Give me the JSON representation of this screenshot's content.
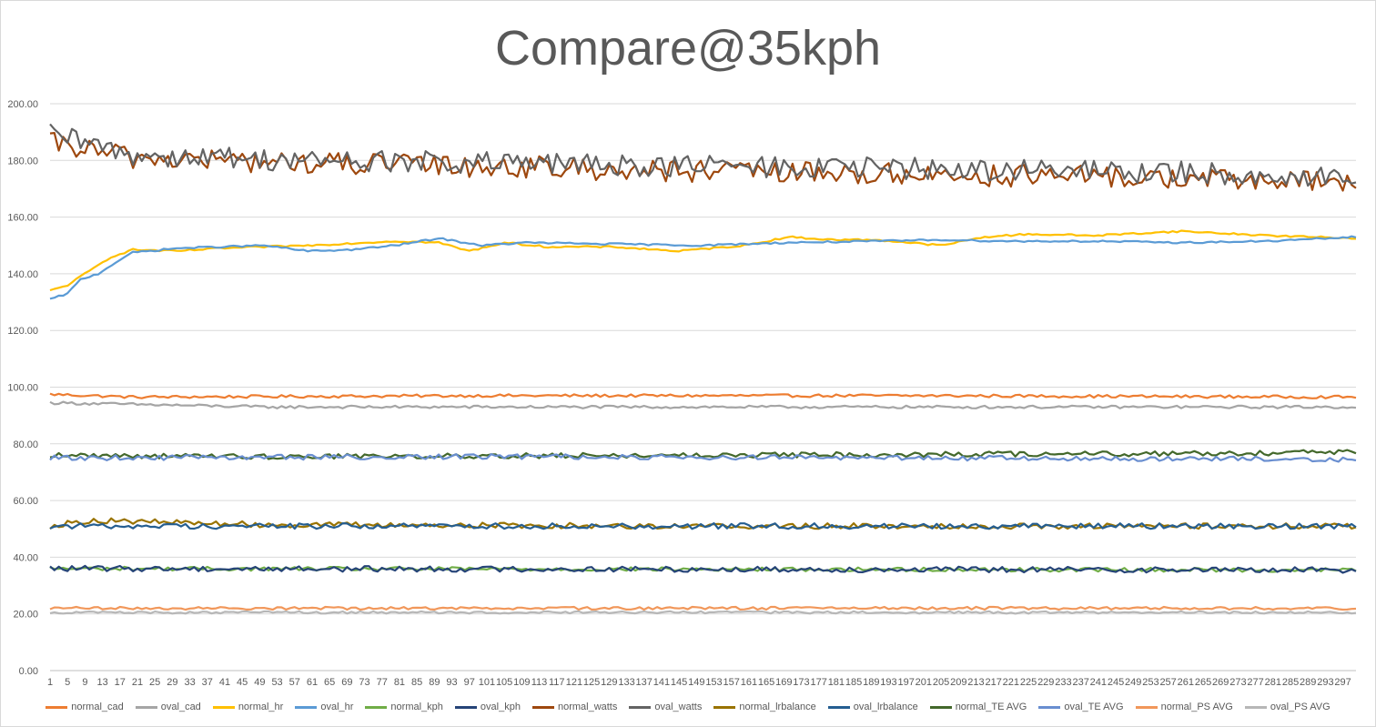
{
  "chart_data": {
    "type": "line",
    "title": "Compare@35kph",
    "xlabel": "",
    "ylabel": "",
    "ylim": [
      0,
      200
    ],
    "yticks": [
      "0.00",
      "20.00",
      "40.00",
      "60.00",
      "80.00",
      "100.00",
      "120.00",
      "140.00",
      "160.00",
      "180.00",
      "200.00"
    ],
    "x_range": [
      1,
      300
    ],
    "x_tick_labels": [
      "1",
      "5",
      "9",
      "13",
      "17",
      "21",
      "25",
      "29",
      "33",
      "37",
      "41",
      "45",
      "49",
      "53",
      "57",
      "61",
      "65",
      "69",
      "73",
      "77",
      "81",
      "85",
      "89",
      "93",
      "97",
      "101",
      "105",
      "109",
      "113",
      "117",
      "121",
      "125",
      "129",
      "133",
      "137",
      "141",
      "145",
      "149",
      "153",
      "157",
      "161",
      "165",
      "169",
      "173",
      "177",
      "181",
      "185",
      "189",
      "193",
      "197",
      "201",
      "205",
      "209",
      "213",
      "217",
      "221",
      "225",
      "229",
      "233",
      "237",
      "241",
      "245",
      "249",
      "253",
      "257",
      "261",
      "265",
      "269",
      "273",
      "277",
      "281",
      "285",
      "289",
      "293",
      "297"
    ],
    "grid": true,
    "legend_position": "bottom",
    "series": [
      {
        "name": "normal_cad",
        "color": "#ED7D31",
        "profile": [
          [
            1,
            97.5
          ],
          [
            20,
            96.5
          ],
          [
            100,
            97
          ],
          [
            200,
            97
          ],
          [
            300,
            96.5
          ]
        ],
        "noise": 0.5
      },
      {
        "name": "oval_cad",
        "color": "#A5A5A5",
        "profile": [
          [
            1,
            94.5
          ],
          [
            50,
            93
          ],
          [
            150,
            93
          ],
          [
            250,
            93
          ],
          [
            300,
            93
          ]
        ],
        "noise": 0.5
      },
      {
        "name": "normal_hr",
        "color": "#FFC000",
        "profile": [
          [
            1,
            134
          ],
          [
            5,
            136
          ],
          [
            10,
            141
          ],
          [
            15,
            146
          ],
          [
            20,
            148.5
          ],
          [
            30,
            148
          ],
          [
            40,
            149
          ],
          [
            60,
            150
          ],
          [
            80,
            151.5
          ],
          [
            90,
            151
          ],
          [
            97,
            148
          ],
          [
            105,
            151
          ],
          [
            115,
            149.5
          ],
          [
            130,
            149.5
          ],
          [
            145,
            148
          ],
          [
            160,
            150
          ],
          [
            170,
            153
          ],
          [
            180,
            152
          ],
          [
            190,
            152
          ],
          [
            205,
            150
          ],
          [
            215,
            153
          ],
          [
            225,
            154
          ],
          [
            240,
            153.5
          ],
          [
            260,
            155
          ],
          [
            280,
            153.5
          ],
          [
            300,
            152.5
          ]
        ],
        "noise": 0.3
      },
      {
        "name": "oval_hr",
        "color": "#5B9BD5",
        "profile": [
          [
            1,
            131
          ],
          [
            5,
            133
          ],
          [
            8,
            138
          ],
          [
            12,
            140
          ],
          [
            17,
            145
          ],
          [
            20,
            147.5
          ],
          [
            30,
            149
          ],
          [
            50,
            150
          ],
          [
            60,
            148
          ],
          [
            70,
            148.5
          ],
          [
            80,
            150
          ],
          [
            90,
            152.5
          ],
          [
            100,
            150
          ],
          [
            110,
            151
          ],
          [
            130,
            150.5
          ],
          [
            150,
            150
          ],
          [
            170,
            151
          ],
          [
            190,
            151.5
          ],
          [
            205,
            152
          ],
          [
            220,
            151.5
          ],
          [
            240,
            151.5
          ],
          [
            260,
            151
          ],
          [
            280,
            151.5
          ],
          [
            300,
            153
          ]
        ],
        "noise": 0.3
      },
      {
        "name": "normal_kph",
        "color": "#70AD47",
        "profile": [
          [
            1,
            36
          ],
          [
            300,
            35.5
          ]
        ],
        "noise": 0.7
      },
      {
        "name": "oval_kph",
        "color": "#264478",
        "profile": [
          [
            1,
            36
          ],
          [
            300,
            35.5
          ]
        ],
        "noise": 1.0
      },
      {
        "name": "normal_watts",
        "color": "#9E480E",
        "profile": [
          [
            1,
            186
          ],
          [
            20,
            181
          ],
          [
            60,
            179
          ],
          [
            100,
            178
          ],
          [
            150,
            176
          ],
          [
            200,
            175
          ],
          [
            250,
            174
          ],
          [
            300,
            172
          ]
        ],
        "noise": 4
      },
      {
        "name": "oval_watts",
        "color": "#636363",
        "profile": [
          [
            1,
            189
          ],
          [
            20,
            182
          ],
          [
            60,
            180
          ],
          [
            100,
            179
          ],
          [
            150,
            178
          ],
          [
            200,
            177
          ],
          [
            250,
            176
          ],
          [
            300,
            174
          ]
        ],
        "noise": 4
      },
      {
        "name": "normal_lrbalance",
        "color": "#997300",
        "profile": [
          [
            1,
            51
          ],
          [
            10,
            53
          ],
          [
            50,
            51.5
          ],
          [
            150,
            51
          ],
          [
            300,
            51
          ]
        ],
        "noise": 1.0
      },
      {
        "name": "oval_lrbalance",
        "color": "#255E91",
        "profile": [
          [
            1,
            51
          ],
          [
            300,
            51
          ]
        ],
        "noise": 1.0
      },
      {
        "name": "normal_TE AVG",
        "color": "#43682B",
        "profile": [
          [
            1,
            76
          ],
          [
            50,
            75.5
          ],
          [
            150,
            76
          ],
          [
            250,
            76.5
          ],
          [
            300,
            77
          ]
        ],
        "noise": 0.9
      },
      {
        "name": "oval_TE AVG",
        "color": "#698ED0",
        "profile": [
          [
            1,
            75
          ],
          [
            100,
            75.5
          ],
          [
            200,
            75
          ],
          [
            300,
            74.5
          ]
        ],
        "noise": 0.9
      },
      {
        "name": "normal_PS AVG",
        "color": "#F1975A",
        "profile": [
          [
            1,
            22
          ],
          [
            300,
            22
          ]
        ],
        "noise": 0.5
      },
      {
        "name": "oval_PS AVG",
        "color": "#B7B7B7",
        "profile": [
          [
            1,
            20.5
          ],
          [
            300,
            20.5
          ]
        ],
        "noise": 0.4
      }
    ]
  }
}
